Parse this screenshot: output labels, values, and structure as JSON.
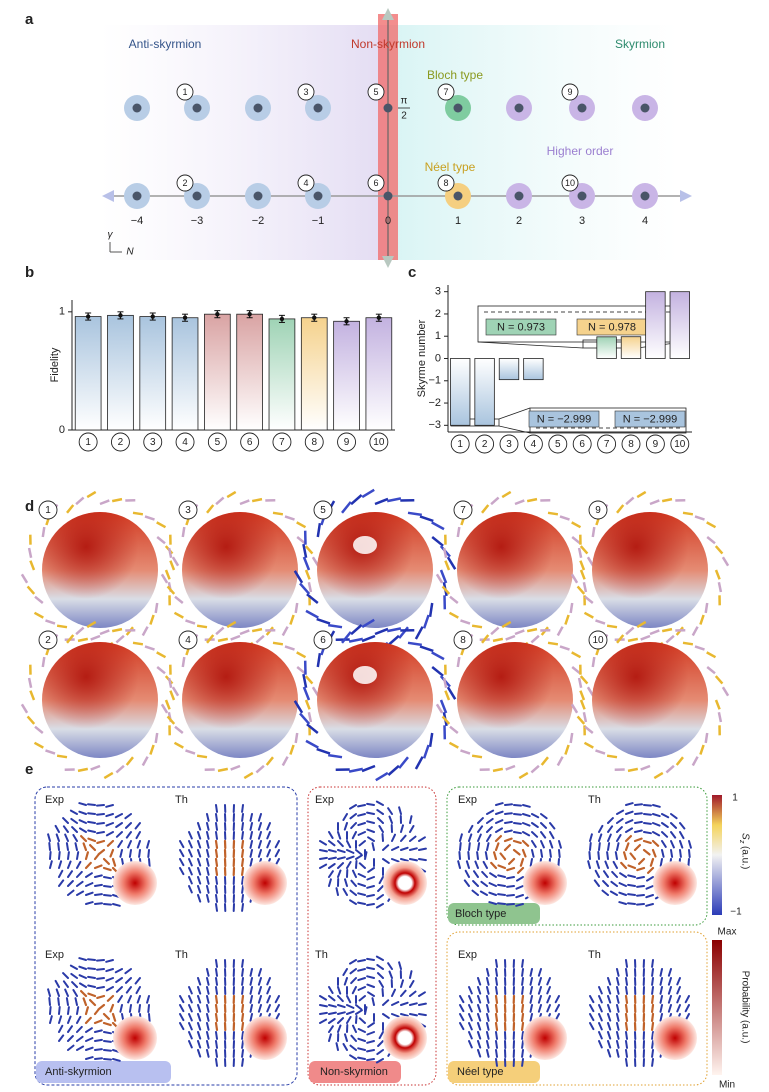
{
  "panel_labels": [
    "a",
    "b",
    "c",
    "d",
    "e"
  ],
  "panel_a": {
    "regions": [
      "Anti-skyrmion",
      "Non-skyrmion",
      "Skyrmion"
    ],
    "types": [
      "Bloch type",
      "Néel type",
      "Higher order"
    ],
    "states": [
      "1",
      "2",
      "3",
      "4",
      "5",
      "6",
      "7",
      "8",
      "9",
      "10"
    ],
    "axis_ticks": [
      "−4",
      "−3",
      "−2",
      "−1",
      "0",
      "1",
      "2",
      "3",
      "4"
    ],
    "half_pi": {
      "numerator": "π",
      "denominator": "2"
    },
    "axes": [
      "γ",
      "N"
    ]
  },
  "chart_data": [
    {
      "type": "bar",
      "ylabel": "Fidelity",
      "categories": [
        "1",
        "2",
        "3",
        "4",
        "5",
        "6",
        "7",
        "8",
        "9",
        "10"
      ],
      "values": [
        0.96,
        0.97,
        0.96,
        0.95,
        0.98,
        0.98,
        0.94,
        0.95,
        0.92,
        0.95
      ],
      "errors": [
        0.03,
        0.03,
        0.03,
        0.03,
        0.03,
        0.03,
        0.03,
        0.03,
        0.03,
        0.03
      ],
      "colors": [
        "#a9c4de",
        "#a9c4de",
        "#a9c4de",
        "#a9c4de",
        "#d9a3a3",
        "#d9a3a3",
        "#9fd3b5",
        "#f5d28d",
        "#c3b2e0",
        "#c3b2e0"
      ],
      "ylim": [
        0,
        1.1
      ],
      "yticks": [
        0,
        1
      ]
    },
    {
      "type": "bar",
      "ylabel": "Skyrme number",
      "categories": [
        "1",
        "2",
        "3",
        "4",
        "5",
        "6",
        "7",
        "8",
        "9",
        "10"
      ],
      "values": [
        -2.999,
        -2.999,
        -0.95,
        -0.95,
        0,
        0,
        0.973,
        0.978,
        3,
        3
      ],
      "value_labels": [
        "N = −2.999",
        "N = −2.999",
        null,
        null,
        null,
        null,
        "N = 0.973",
        "N = 0.978",
        null,
        null
      ],
      "colors": [
        "#a9c4de",
        "#a9c4de",
        "#a9c4de",
        "#a9c4de",
        "#d9a3a3",
        "#d9a3a3",
        "#9fd3b5",
        "#f5d28d",
        "#c3b2e0",
        "#c3b2e0"
      ],
      "ylim": [
        -3.3,
        3.3
      ],
      "yticks": [
        {
          "value": -3,
          "label": "−3"
        },
        {
          "value": -2,
          "label": "−2"
        },
        {
          "value": -1,
          "label": "−1"
        },
        0,
        1,
        2,
        3
      ]
    }
  ],
  "panel_d": {
    "labels": [
      "1",
      "3",
      "5",
      "7",
      "9",
      "2",
      "4",
      "6",
      "8",
      "10"
    ]
  },
  "panel_e": {
    "cell_labels": [
      "Exp",
      "Th",
      "Exp",
      "Exp",
      "Th",
      "Exp",
      "Th",
      "Th",
      "Exp",
      "Th"
    ],
    "groups": [
      "Anti-skyrmion",
      "Non-skyrmion",
      "Bloch type",
      "Néel type"
    ],
    "sz": {
      "symbol": "S",
      "subscript": "z",
      "unit": "(a.u.)",
      "max": "1",
      "min": "−1"
    },
    "probability": {
      "label": "Probability (a.u.)",
      "max": "Max",
      "min": "Min"
    }
  }
}
